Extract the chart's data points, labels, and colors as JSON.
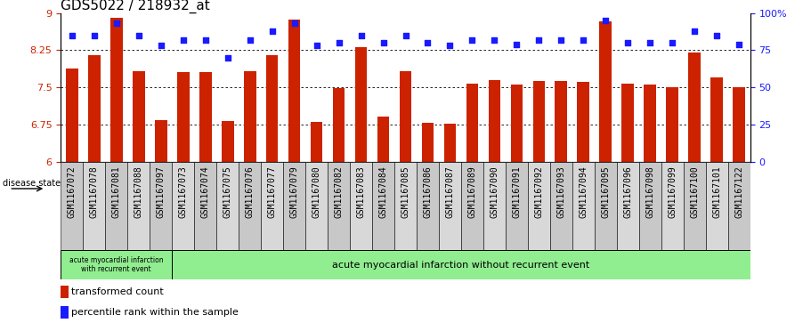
{
  "title": "GDS5022 / 218932_at",
  "samples": [
    "GSM1167072",
    "GSM1167078",
    "GSM1167081",
    "GSM1167088",
    "GSM1167097",
    "GSM1167073",
    "GSM1167074",
    "GSM1167075",
    "GSM1167076",
    "GSM1167077",
    "GSM1167079",
    "GSM1167080",
    "GSM1167082",
    "GSM1167083",
    "GSM1167084",
    "GSM1167085",
    "GSM1167086",
    "GSM1167087",
    "GSM1167089",
    "GSM1167090",
    "GSM1167091",
    "GSM1167092",
    "GSM1167093",
    "GSM1167094",
    "GSM1167095",
    "GSM1167096",
    "GSM1167098",
    "GSM1167099",
    "GSM1167100",
    "GSM1167101",
    "GSM1167122"
  ],
  "bar_values": [
    7.87,
    8.15,
    8.9,
    7.83,
    6.83,
    7.8,
    7.8,
    6.82,
    7.82,
    8.15,
    8.87,
    6.8,
    7.48,
    8.3,
    6.9,
    7.83,
    6.78,
    6.77,
    7.57,
    7.65,
    7.55,
    7.63,
    7.63,
    7.6,
    8.83,
    7.58,
    7.55,
    7.5,
    8.2,
    7.7,
    7.5
  ],
  "percentile_values": [
    85,
    85,
    93,
    85,
    78,
    82,
    82,
    70,
    82,
    88,
    93,
    78,
    80,
    85,
    80,
    85,
    80,
    78,
    82,
    82,
    79,
    82,
    82,
    82,
    95,
    80,
    80,
    80,
    88,
    85,
    79
  ],
  "bar_color": "#cc2200",
  "dot_color": "#1a1aff",
  "ylim_left": [
    6,
    9
  ],
  "ylim_right": [
    0,
    100
  ],
  "yticks_left": [
    6,
    6.75,
    7.5,
    8.25,
    9
  ],
  "yticks_right": [
    0,
    25,
    50,
    75,
    100
  ],
  "grid_lines": [
    6.75,
    7.5,
    8.25
  ],
  "group1_count": 5,
  "group1_label": "acute myocardial infarction\nwith recurrent event",
  "group2_label": "acute myocardial infarction without recurrent event",
  "disease_state_label": "disease state",
  "legend_bar_label": "transformed count",
  "legend_dot_label": "percentile rank within the sample",
  "tick_fontsize": 7,
  "title_fontsize": 11
}
